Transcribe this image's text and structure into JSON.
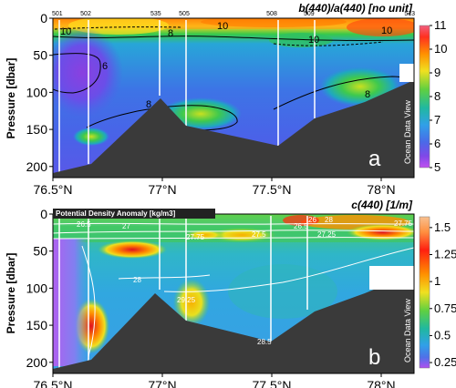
{
  "chart_data": [
    {
      "type": "heatmap",
      "title": "b(440)/a(440) [no unit]",
      "ylabel": "Pressure [dbar]",
      "xticks": [
        "76.5°N",
        "77°N",
        "77.5°N",
        "78°N"
      ],
      "yticks": [
        "0",
        "50",
        "100",
        "150",
        "200"
      ],
      "xlim": [
        76.5,
        78.15
      ],
      "ylim": [
        215,
        0
      ],
      "colorbar": {
        "ticks": [
          "11",
          "10",
          "9",
          "8",
          "7",
          "6",
          "5"
        ],
        "range": [
          5,
          11
        ]
      },
      "stations": [
        {
          "name": "501",
          "lat": 76.52
        },
        {
          "name": "502",
          "lat": 76.65
        },
        {
          "name": "535",
          "lat": 76.97
        },
        {
          "name": "505",
          "lat": 77.1
        },
        {
          "name": "508",
          "lat": 77.5
        },
        {
          "name": "509",
          "lat": 77.67
        },
        {
          "name": "513",
          "lat": 78.13
        }
      ],
      "contour_labels": [
        "10",
        "8",
        "10",
        "6",
        "10",
        "8",
        "10",
        "8",
        "8",
        "10"
      ],
      "panel_letter": "a",
      "watermark": "Ocean Data View"
    },
    {
      "type": "heatmap",
      "title": "c(440) [1/m]",
      "overlay_label": "Potential Density Anomaly [kg/m3]",
      "ylabel": "Pressure [dbar]",
      "xticks": [
        "76.5°N",
        "77°N",
        "77.5°N",
        "78°N"
      ],
      "yticks": [
        "0",
        "50",
        "100",
        "150",
        "200"
      ],
      "xlim": [
        76.5,
        78.15
      ],
      "ylim": [
        215,
        0
      ],
      "colorbar": {
        "ticks": [
          "1.5",
          "1.25",
          "1",
          "0.75",
          "0.5",
          "0.25"
        ],
        "range": [
          0.2,
          1.6
        ]
      },
      "density_contours": [
        "26.5",
        "27",
        "27.75",
        "27.5",
        "26.5",
        "26",
        "28",
        "27.25",
        "28",
        "29.25",
        "28.5",
        "27.75"
      ],
      "panel_letter": "b",
      "watermark": "Ocean Data View"
    }
  ]
}
